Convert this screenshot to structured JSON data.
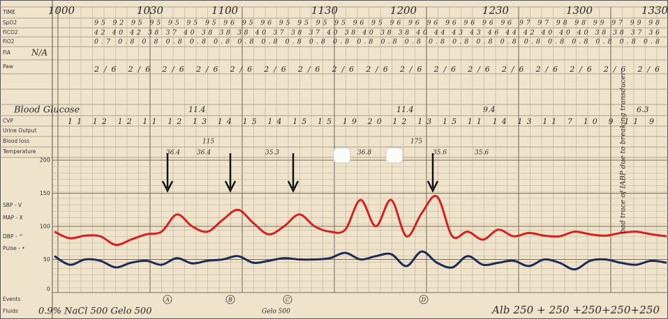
{
  "header": {
    "row_labels": [
      "TIME",
      "SpO2",
      "FiCO2",
      "FiO2",
      "FiA",
      "Paw"
    ],
    "times": [
      "1000",
      "1030",
      "1100",
      "1130",
      "1200",
      "1230",
      "1300",
      "1330"
    ]
  },
  "rows": {
    "spo2": "95 92 95 95 95 95 95 96 95 96 95 95 95 95 96 95 96 96 96 96 96 96 96 97 97 98   98   99  97  99   98",
    "fico2": "42 40 42 38 37 40 38 38 38 40 37 38 37 40 38 40 38 38 40 44 43 43 46 44 42 40 40   40   38  38  37   36",
    "fio2": "0.7 0.8 0.8 0.8 0.8 0.8 0.8 0.8 0.8 0.8 0.8 0.8 0.8 0.8 0.8 0.8 0.8 0.8 0.8   0.8   0.8  0.8  0.8   0.8",
    "fia": "N/A",
    "paw": "2/6     2/6     2/6 2/6 2/6 2/6     2/6     2/6   2/6   2/6   2/6     2/6   2/6      2/6   2/6   2/6   2/6",
    "glucose_label": "Blood Glucose",
    "glucose": [
      "11.4",
      "11.4",
      "9.4",
      "6.3"
    ],
    "labels": [
      "CVP",
      "Urine Output",
      "Blood loss",
      "Temperature"
    ],
    "cvp": "11 12 12 11 12 13 14 15 14 15 15 19 20 12 13 15    11    14    13    11    7    10           9     11       9",
    "blood_loss": [
      "115",
      "175"
    ],
    "temperature": [
      "36.4",
      "36.4",
      "35.3",
      "36.8",
      "35.6",
      "35.6"
    ]
  },
  "plot": {
    "ylim": [
      0,
      200
    ],
    "yticks": [
      200,
      150,
      100,
      50,
      0
    ],
    "labels": [
      "SBP - V",
      "MAP - X",
      "DBP - ^",
      "Pulse - •"
    ],
    "map": [
      92,
      82,
      86,
      85,
      72,
      80,
      88,
      92,
      118,
      100,
      92,
      110,
      125,
      105,
      88,
      100,
      118,
      100,
      92,
      95,
      140,
      100,
      140,
      85,
      120,
      145,
      85,
      92,
      80,
      95,
      85,
      90,
      86,
      85,
      92,
      88,
      86,
      90,
      92,
      88,
      85
    ],
    "pulse": [
      55,
      42,
      50,
      48,
      38,
      45,
      48,
      42,
      52,
      44,
      48,
      50,
      55,
      45,
      48,
      52,
      50,
      50,
      52,
      60,
      50,
      55,
      58,
      40,
      62,
      45,
      38,
      55,
      42,
      45,
      48,
      40,
      50,
      45,
      35,
      48,
      50,
      45,
      42,
      48,
      45
    ]
  },
  "events": {
    "labels": [
      "Events",
      "Fluids"
    ],
    "markers": [
      "A",
      "B",
      "C",
      "D"
    ],
    "fluids": [
      "0.9% NaCl 500 Gelo 500",
      "Gelo 500",
      "Alb 250 + 250 +250+250+250"
    ]
  },
  "note": "bad trace of IABP due to breaking transducer"
}
